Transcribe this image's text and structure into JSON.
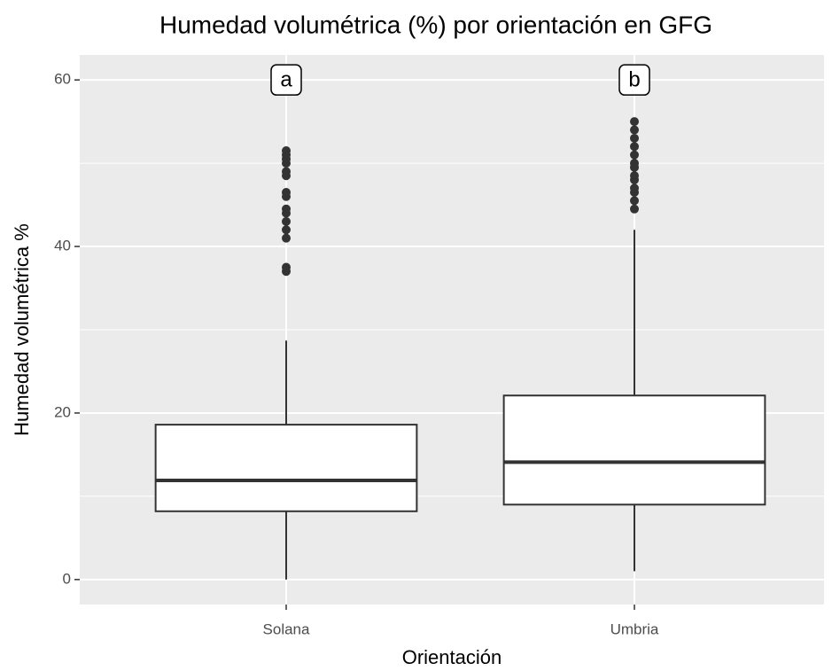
{
  "chart_data": {
    "type": "box",
    "title": "Humedad volumétrica (%) por orientación en GFG",
    "x_label": "Orientación",
    "y_label": "Humedad volumétrica %",
    "categories": [
      "Solana",
      "Umbria"
    ],
    "boxes": [
      {
        "min": 0,
        "q1": 8.2,
        "median": 11.9,
        "q3": 18.6,
        "max": 28.7,
        "outliers": [
          37,
          37.5,
          41,
          42,
          43,
          44,
          44.5,
          46,
          46.5,
          48.5,
          49,
          50,
          50.5,
          51,
          51.5
        ]
      },
      {
        "min": 1,
        "q1": 9,
        "median": 14.1,
        "q3": 22.1,
        "max": 42,
        "outliers": [
          44.5,
          45.5,
          46.5,
          47,
          48,
          48.5,
          49.5,
          50,
          51,
          52,
          53,
          54,
          55
        ]
      }
    ],
    "letters": [
      "a",
      "b"
    ],
    "letter_y": 60,
    "ylim": [
      -3,
      63
    ],
    "yticks": [
      0,
      20,
      40,
      60
    ],
    "minor_yticks": [
      10,
      30,
      50
    ],
    "grid": true
  }
}
